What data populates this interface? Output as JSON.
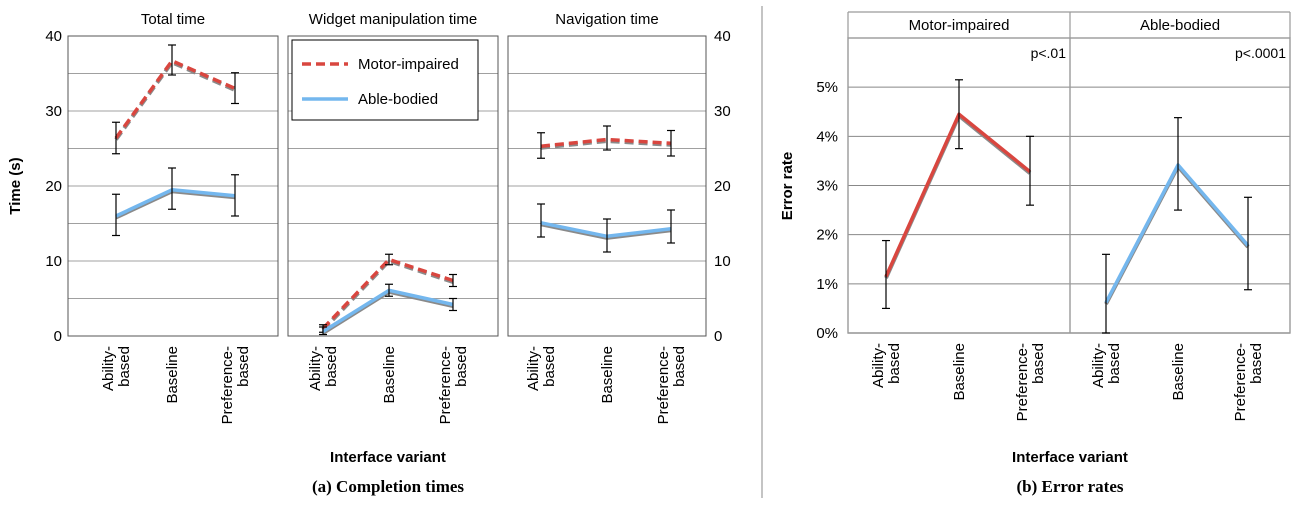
{
  "figure": {
    "caption_a": "(a) Completion times",
    "caption_b": "(b) Error rates"
  },
  "colors": {
    "motor_impaired": "#d9463f",
    "able_bodied": "#74b7ee",
    "grid": "#a0a0a0",
    "frame": "#9a9a9a",
    "divider": "#888888"
  },
  "chart_data": [
    {
      "type": "line",
      "group": "Completion times",
      "title": "Total time",
      "categories": [
        "Ability-based",
        "Baseline",
        "Preference-based"
      ],
      "xlabel": "Interface variant",
      "ylabel": "Time (s)",
      "ylim": [
        0,
        40
      ],
      "yticks": [
        0,
        10,
        20,
        30,
        40
      ],
      "grid": true,
      "series": [
        {
          "name": "Motor-impaired",
          "style": "dashed",
          "values": [
            26.4,
            36.7,
            33.0
          ],
          "err_low": [
            24.3,
            34.8,
            31.0
          ],
          "err_high": [
            28.5,
            38.8,
            35.1
          ]
        },
        {
          "name": "Able-bodied",
          "style": "solid",
          "values": [
            16.0,
            19.5,
            18.7
          ],
          "err_low": [
            13.4,
            16.9,
            16.0
          ],
          "err_high": [
            18.9,
            22.4,
            21.5
          ]
        }
      ]
    },
    {
      "type": "line",
      "group": "Completion times",
      "title": "Widget manipulation time",
      "categories": [
        "Ability-based",
        "Baseline",
        "Preference-based"
      ],
      "ylim": [
        0,
        40
      ],
      "grid": true,
      "legend": {
        "placement": "top-left",
        "entries": [
          "Motor-impaired",
          "Able-bodied"
        ]
      },
      "series": [
        {
          "name": "Motor-impaired",
          "style": "dashed",
          "values": [
            1.0,
            10.2,
            7.4
          ],
          "err_low": [
            0.5,
            9.5,
            6.6
          ],
          "err_high": [
            1.5,
            10.9,
            8.2
          ]
        },
        {
          "name": "Able-bodied",
          "style": "solid",
          "values": [
            0.6,
            6.1,
            4.2
          ],
          "err_low": [
            0.2,
            5.3,
            3.4
          ],
          "err_high": [
            1.2,
            6.9,
            5.0
          ]
        }
      ]
    },
    {
      "type": "line",
      "group": "Completion times",
      "title": "Navigation time",
      "categories": [
        "Ability-based",
        "Baseline",
        "Preference-based"
      ],
      "ylim": [
        0,
        40
      ],
      "yticks": [
        0,
        10,
        20,
        30,
        40
      ],
      "grid": true,
      "series": [
        {
          "name": "Motor-impaired",
          "style": "dashed",
          "values": [
            25.3,
            26.2,
            25.7
          ],
          "err_low": [
            23.7,
            24.8,
            24.0
          ],
          "err_high": [
            27.1,
            28.0,
            27.4
          ]
        },
        {
          "name": "Able-bodied",
          "style": "solid",
          "values": [
            15.1,
            13.3,
            14.3
          ],
          "err_low": [
            13.2,
            11.2,
            12.4
          ],
          "err_high": [
            17.6,
            15.6,
            16.8
          ]
        }
      ]
    },
    {
      "type": "line",
      "group": "Error rates",
      "title": "Motor-impaired",
      "annotation": "p<.01",
      "categories": [
        "Ability-based",
        "Baseline",
        "Preference-based"
      ],
      "xlabel": "Interface variant",
      "ylabel": "Error rate",
      "ylim": [
        0,
        6
      ],
      "yticks": [
        "0%",
        "1%",
        "2%",
        "3%",
        "4%",
        "5%"
      ],
      "grid": true,
      "series": [
        {
          "name": "Motor-impaired",
          "values": [
            1.15,
            4.45,
            3.28
          ],
          "err_low": [
            0.5,
            3.75,
            2.6
          ],
          "err_high": [
            1.88,
            5.15,
            4.0
          ]
        }
      ]
    },
    {
      "type": "line",
      "group": "Error rates",
      "title": "Able-bodied",
      "annotation": "p<.0001",
      "categories": [
        "Ability-based",
        "Baseline",
        "Preference-based"
      ],
      "ylim": [
        0,
        6
      ],
      "grid": true,
      "series": [
        {
          "name": "Able-bodied",
          "values": [
            0.62,
            3.42,
            1.78
          ],
          "err_low": [
            0.0,
            2.5,
            0.88
          ],
          "err_high": [
            1.6,
            4.38,
            2.76
          ]
        }
      ]
    }
  ]
}
